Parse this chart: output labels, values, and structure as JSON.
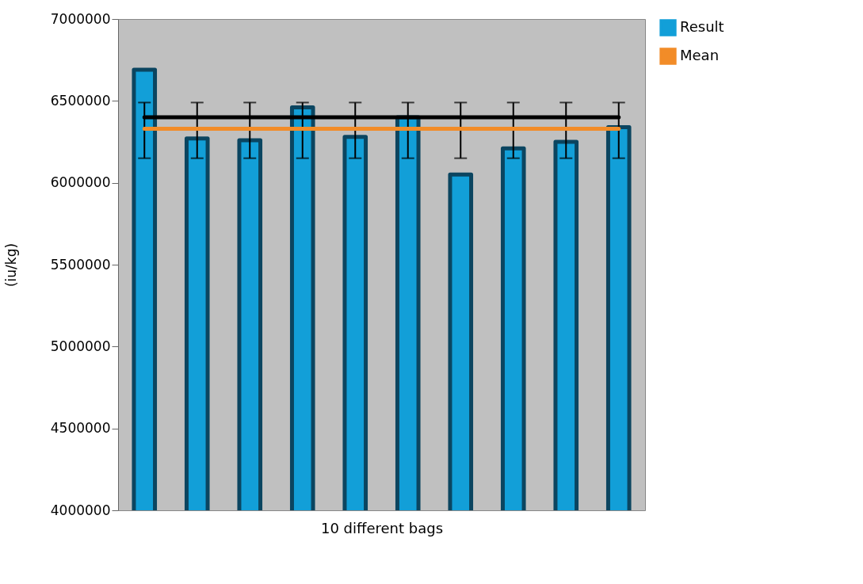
{
  "chart_data": {
    "type": "bar",
    "xlabel": "10 different bags",
    "ylabel": "(iu/kg)",
    "categories": [
      null,
      null,
      null,
      null,
      null,
      null,
      null,
      null,
      null,
      null
    ],
    "series": [
      {
        "name": "Result",
        "color": "#129fd8",
        "values": [
          6690000,
          6270000,
          6260000,
          6460000,
          6280000,
          6400000,
          6050000,
          6210000,
          6250000,
          6340000
        ],
        "errors": [
          [
            6150000,
            6490000
          ],
          [
            6150000,
            6490000
          ],
          [
            6150000,
            6490000
          ],
          [
            6150000,
            6490000
          ],
          [
            6150000,
            6490000
          ],
          [
            6150000,
            6490000
          ],
          [
            6150000,
            6490000
          ],
          [
            6150000,
            6490000
          ],
          [
            6150000,
            6490000
          ],
          [
            6150000,
            6490000
          ]
        ]
      },
      {
        "type": "line",
        "color": "#000000",
        "values": [
          6400000,
          6400000,
          6400000,
          6400000,
          6400000,
          6400000,
          6400000,
          6400000,
          6400000,
          6400000
        ]
      },
      {
        "type": "line",
        "name": "Mean",
        "color": "#f28c28",
        "values": [
          6330000,
          6330000,
          6330000,
          6330000,
          6330000,
          6330000,
          6330000,
          6330000,
          6330000,
          6330000
        ]
      }
    ],
    "ylim": [
      4000000,
      7000000
    ],
    "yticks": [
      4000000,
      4500000,
      5000000,
      5500000,
      6000000,
      6500000,
      7000000
    ],
    "grid": false,
    "legend": "right",
    "marker": "none",
    "line_style": "solid"
  }
}
